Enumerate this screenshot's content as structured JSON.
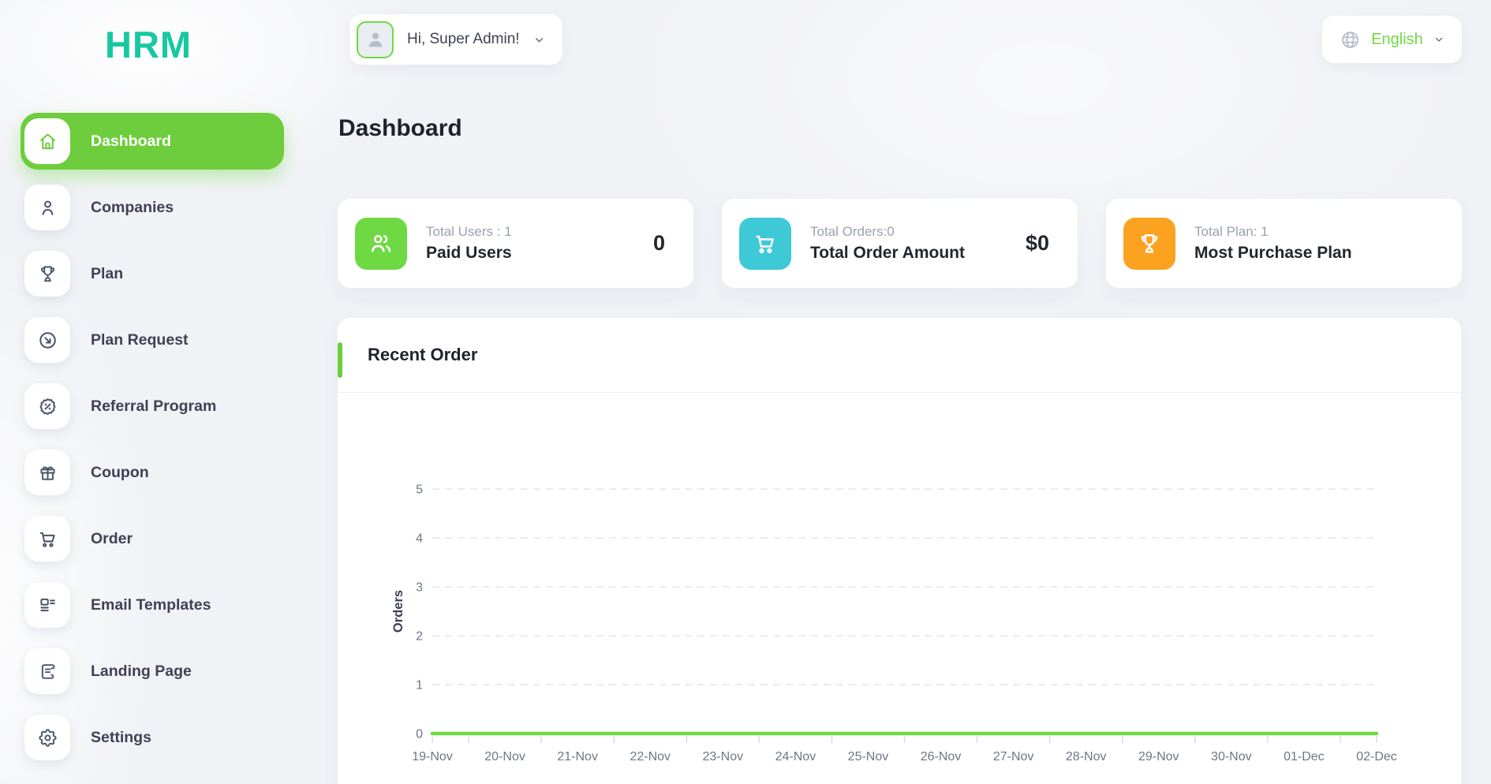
{
  "app": {
    "logo_text": "HRM",
    "logo_color": "#17c8a0",
    "accent_color": "#6fd943"
  },
  "header": {
    "greeting": "Hi, Super Admin!",
    "language": "English"
  },
  "sidebar": {
    "items": [
      {
        "label": "Dashboard",
        "icon": "home-icon",
        "active": true
      },
      {
        "label": "Companies",
        "icon": "user-icon",
        "active": false
      },
      {
        "label": "Plan",
        "icon": "trophy-icon",
        "active": false
      },
      {
        "label": "Plan Request",
        "icon": "arrow-circle-icon",
        "active": false
      },
      {
        "label": "Referral Program",
        "icon": "discount-badge-icon",
        "active": false
      },
      {
        "label": "Coupon",
        "icon": "gift-icon",
        "active": false
      },
      {
        "label": "Order",
        "icon": "cart-icon",
        "active": false
      },
      {
        "label": "Email Templates",
        "icon": "layout-icon",
        "active": false
      },
      {
        "label": "Landing Page",
        "icon": "scroll-icon",
        "active": false
      },
      {
        "label": "Settings",
        "icon": "gear-icon",
        "active": false
      }
    ]
  },
  "page": {
    "title": "Dashboard"
  },
  "stats": [
    {
      "icon": "users-icon",
      "color": "#6fd943",
      "top": "Total Users : 1",
      "title": "Paid Users",
      "value": "0"
    },
    {
      "icon": "cart-icon",
      "color": "#3ec9d6",
      "top": "Total Orders:0",
      "title": "Total Order Amount",
      "value": "$0"
    },
    {
      "icon": "trophy-icon",
      "color": "#fba321",
      "top": "Total Plan: 1",
      "title": "Most Purchase Plan",
      "value": ""
    }
  ],
  "chart_section": {
    "title": "Recent Order"
  },
  "chart_data": {
    "type": "line",
    "title": "Recent Order",
    "ylabel": "Orders",
    "xlabel": "",
    "ylim": [
      0,
      5
    ],
    "yticks": [
      0,
      1,
      2,
      3,
      4,
      5
    ],
    "grid": "dashed-horizontal",
    "legend_position": "none",
    "line_color": "#6fd943",
    "categories": [
      "19-Nov",
      "20-Nov",
      "21-Nov",
      "22-Nov",
      "23-Nov",
      "24-Nov",
      "25-Nov",
      "26-Nov",
      "27-Nov",
      "28-Nov",
      "29-Nov",
      "30-Nov",
      "01-Dec",
      "02-Dec"
    ],
    "series": [
      {
        "name": "Orders",
        "values": [
          0,
          0,
          0,
          0,
          0,
          0,
          0,
          0,
          0,
          0,
          0,
          0,
          0,
          0
        ]
      }
    ]
  }
}
